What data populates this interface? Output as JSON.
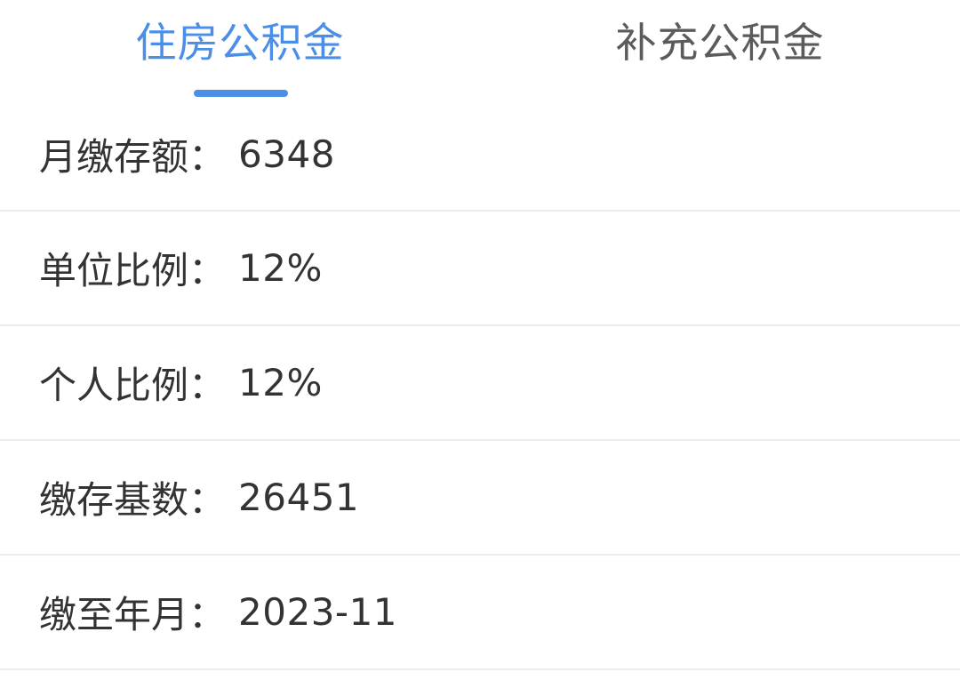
{
  "tabs": {
    "housing_fund": "住房公积金",
    "supplementary_fund": "补充公积金"
  },
  "colors": {
    "accent": "#4a8ee8",
    "text": "#333333",
    "inactive_tab": "#5b5b5b",
    "divider": "#ececec"
  },
  "details": {
    "colon": "：",
    "monthly_deposit": {
      "label": "月缴存额",
      "value": "6348"
    },
    "employer_ratio": {
      "label": "单位比例",
      "value": "12%"
    },
    "personal_ratio": {
      "label": "个人比例",
      "value": "12%"
    },
    "deposit_base": {
      "label": "缴存基数",
      "value": "26451"
    },
    "paid_until": {
      "label": "缴至年月",
      "value": "2023-11"
    }
  }
}
